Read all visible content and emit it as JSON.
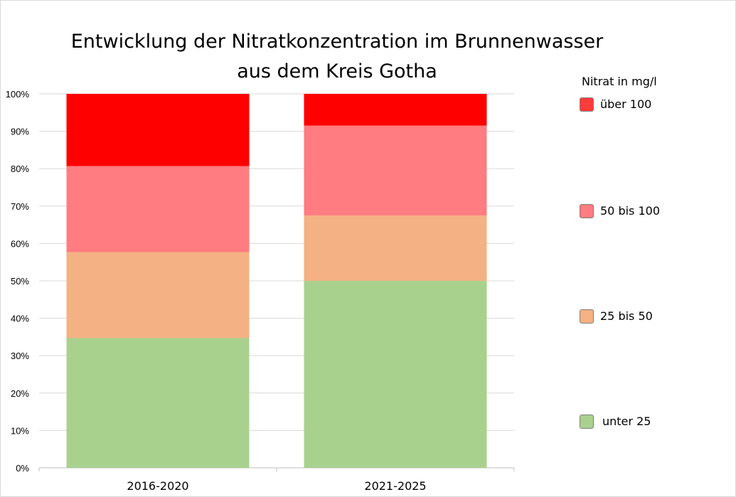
{
  "chart_data": {
    "type": "bar",
    "stacked": true,
    "percent": true,
    "title": [
      "Entwicklung der Nitratkonzentration im Brunnenwasser",
      "aus dem Kreis Gotha"
    ],
    "categories": [
      "2016-2020",
      "2021-2025"
    ],
    "series": [
      {
        "name": "unter 25",
        "color": "#a9d18e",
        "values": [
          34.7,
          50.0
        ]
      },
      {
        "name": "25 bis 50",
        "color": "#f4b183",
        "values": [
          23.0,
          17.5
        ]
      },
      {
        "name": "50 bis 100",
        "color": "#ff7c80",
        "values": [
          23.0,
          24.0
        ]
      },
      {
        "name": "über 100",
        "color": "#ff0000",
        "values": [
          19.3,
          8.5
        ]
      }
    ],
    "ylim": [
      0,
      100
    ],
    "yticks": [
      "0%",
      "10%",
      "20%",
      "30%",
      "40%",
      "50%",
      "60%",
      "70%",
      "80%",
      "90%",
      "100%"
    ],
    "grid": true,
    "legend": {
      "title": "Nitrat in mg/l",
      "placement": "right"
    }
  }
}
